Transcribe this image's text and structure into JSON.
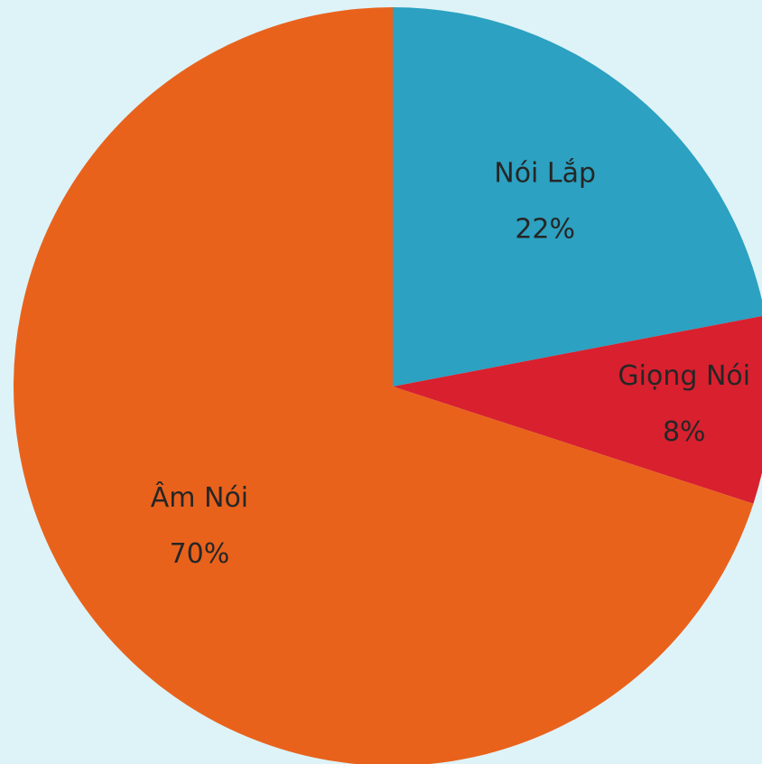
{
  "chart_data": {
    "type": "pie",
    "categories": [
      "Nói Lắp",
      "Giọng Nói",
      "Âm Nói"
    ],
    "values": [
      22,
      8,
      70
    ],
    "value_labels": [
      "22%",
      "8%",
      "70%"
    ],
    "colors": [
      "#2ca1c1",
      "#d8202f",
      "#e9621c"
    ]
  }
}
